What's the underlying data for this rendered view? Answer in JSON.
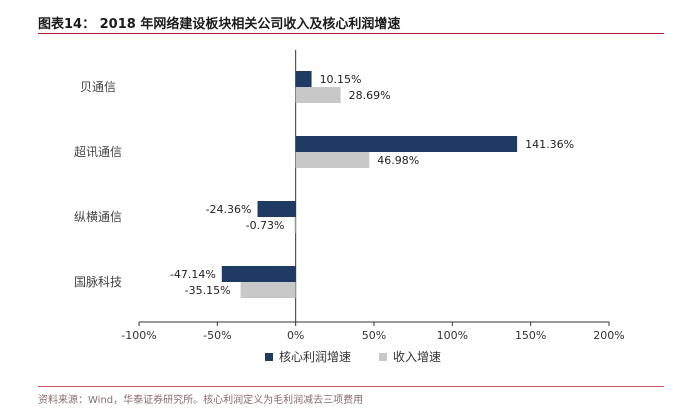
{
  "figure": {
    "title": "图表14：  2018 年网络建设板块相关公司收入及核心利润增速",
    "source": "资料来源：Wind，华泰证券研究所。核心利润定义为毛利润减去三项费用"
  },
  "chart_data": {
    "type": "bar",
    "orientation": "horizontal",
    "categories": [
      "贝通信",
      "超讯通信",
      "纵横通信",
      "国脉科技"
    ],
    "series": [
      {
        "name": "核心利润增速",
        "values": [
          10.15,
          141.36,
          -24.36,
          -47.14
        ],
        "labels": [
          "10.15%",
          "141.36%",
          "-24.36%",
          "-47.14%"
        ],
        "color": "#1f3b63"
      },
      {
        "name": "收入增速",
        "values": [
          28.69,
          46.98,
          -0.73,
          -35.15
        ],
        "labels": [
          "28.69%",
          "46.98%",
          "-0.73%",
          "-35.15%"
        ],
        "color": "#c8c8c8"
      }
    ],
    "xlim": [
      -100,
      200
    ],
    "xticks": [
      -100,
      -50,
      0,
      50,
      100,
      150,
      200
    ],
    "xtick_labels": [
      "-100%",
      "-50%",
      "0%",
      "50%",
      "100%",
      "150%",
      "200%"
    ],
    "legend_position": "bottom-center",
    "grid": false
  }
}
